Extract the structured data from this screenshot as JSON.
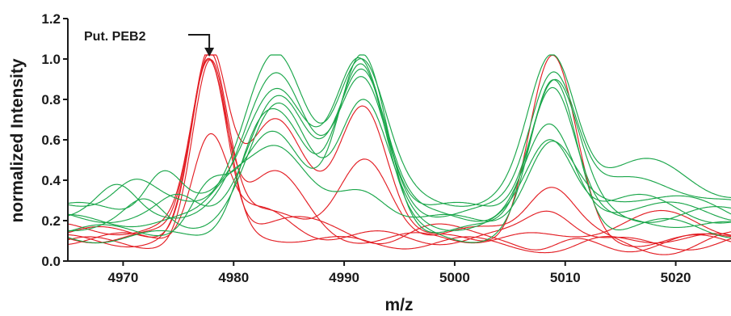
{
  "chart_data": {
    "type": "line",
    "title": "",
    "xlabel": "m/z",
    "ylabel": "normalized Intensity",
    "xlim": [
      4965,
      5025
    ],
    "ylim": [
      0,
      1.2
    ],
    "xticks": [
      4970,
      4980,
      4990,
      5000,
      5010,
      5020
    ],
    "yticks": [
      0.0,
      0.2,
      0.4,
      0.6,
      0.8,
      1.0,
      1.2
    ],
    "ytick_labels": [
      "0.0",
      "0.2",
      "0.4",
      "0.6",
      "0.8",
      "1.0",
      "1.2"
    ],
    "grid": false,
    "legend": "none",
    "annotation": {
      "text": "Put. PEB2",
      "x": 4977.8,
      "y": 1.0
    },
    "colors": {
      "red_group": "#e31e24",
      "green_group": "#1aa64a",
      "axis": "#1a1a1a"
    },
    "series": [
      {
        "color": "#e31e24",
        "baseline": 0.14,
        "peaks": [
          [
            4977.8,
            1.0
          ],
          [
            4983.6,
            0.27
          ],
          [
            4992.0,
            0.48
          ],
          [
            5008.7,
            0.4
          ],
          [
            5018.2,
            0.06
          ]
        ]
      },
      {
        "color": "#e31e24",
        "baseline": 0.1,
        "peaks": [
          [
            4977.8,
            0.98
          ],
          [
            4983.6,
            0.72
          ],
          [
            4991.8,
            0.78
          ],
          [
            5008.8,
            1.0
          ],
          [
            5018.0,
            0.1
          ]
        ]
      },
      {
        "color": "#e31e24",
        "baseline": 0.12,
        "peaks": [
          [
            4977.7,
            1.0
          ],
          [
            4983.6,
            0.42
          ],
          [
            4993.5,
            0.1
          ],
          [
            5009.0,
            0.1
          ],
          [
            5018.5,
            0.22
          ]
        ]
      },
      {
        "color": "#e31e24",
        "baseline": 0.11,
        "peaks": [
          [
            4977.8,
            0.62
          ],
          [
            4983.0,
            0.24
          ],
          [
            4993.8,
            0.12
          ],
          [
            5008.7,
            0.27
          ],
          [
            5018.6,
            0.08
          ]
        ]
      },
      {
        "color": "#e31e24",
        "baseline": 0.09,
        "peaks": [
          [
            4977.9,
            0.96
          ],
          [
            4982.8,
            0.13
          ],
          [
            4994.0,
            0.09
          ],
          [
            5010.0,
            0.05
          ],
          [
            5019.0,
            0.12
          ]
        ]
      },
      {
        "color": "#e31e24",
        "baseline": 0.16,
        "peaks": [
          [
            4977.8,
            0.99
          ],
          [
            4984.2,
            0.2
          ],
          [
            4993.9,
            0.11
          ],
          [
            5007.8,
            0.05
          ],
          [
            5017.2,
            0.07
          ]
        ]
      },
      {
        "color": "#1aa64a",
        "baseline": 0.3,
        "peaks": [
          [
            4971.0,
            0.38
          ],
          [
            4983.8,
            1.0
          ],
          [
            4991.5,
            1.0
          ],
          [
            5008.8,
            0.98
          ],
          [
            5016.9,
            0.48
          ]
        ]
      },
      {
        "color": "#1aa64a",
        "baseline": 0.24,
        "peaks": [
          [
            4969.5,
            0.35
          ],
          [
            4984.0,
            0.94
          ],
          [
            4991.6,
            0.87
          ],
          [
            5008.9,
            0.94
          ],
          [
            5017.5,
            0.4
          ]
        ]
      },
      {
        "color": "#1aa64a",
        "baseline": 0.26,
        "peaks": [
          [
            4973.6,
            0.46
          ],
          [
            4983.8,
            0.88
          ],
          [
            4991.5,
            0.99
          ],
          [
            5009.0,
            0.9
          ],
          [
            5018.2,
            0.22
          ]
        ]
      },
      {
        "color": "#1aa64a",
        "baseline": 0.22,
        "peaks": [
          [
            4975.0,
            0.3
          ],
          [
            4983.9,
            0.8
          ],
          [
            4991.6,
            0.97
          ],
          [
            5008.5,
            0.64
          ],
          [
            5017.0,
            0.27
          ]
        ]
      },
      {
        "color": "#1aa64a",
        "baseline": 0.18,
        "peaks": [
          [
            4972.0,
            0.28
          ],
          [
            4984.2,
            0.76
          ],
          [
            4991.7,
            0.78
          ],
          [
            5008.7,
            0.58
          ],
          [
            5016.5,
            0.3
          ]
        ]
      },
      {
        "color": "#1aa64a",
        "baseline": 0.15,
        "peaks": [
          [
            4977.7,
            0.34
          ],
          [
            4983.7,
            0.66
          ],
          [
            4991.7,
            0.99
          ],
          [
            5008.8,
            0.88
          ],
          [
            5018.0,
            0.2
          ]
        ]
      },
      {
        "color": "#1aa64a",
        "baseline": 0.2,
        "peaks": [
          [
            4979.5,
            0.3
          ],
          [
            4983.5,
            0.59
          ],
          [
            4991.8,
            0.36
          ],
          [
            5008.6,
            0.56
          ],
          [
            5017.5,
            0.33
          ]
        ]
      },
      {
        "color": "#1aa64a",
        "baseline": 0.12,
        "peaks": [
          [
            4981.5,
            0.25
          ],
          [
            4984.0,
            0.68
          ],
          [
            4991.5,
            0.99
          ],
          [
            5009.0,
            0.87
          ],
          [
            5019.0,
            0.18
          ]
        ]
      }
    ]
  }
}
